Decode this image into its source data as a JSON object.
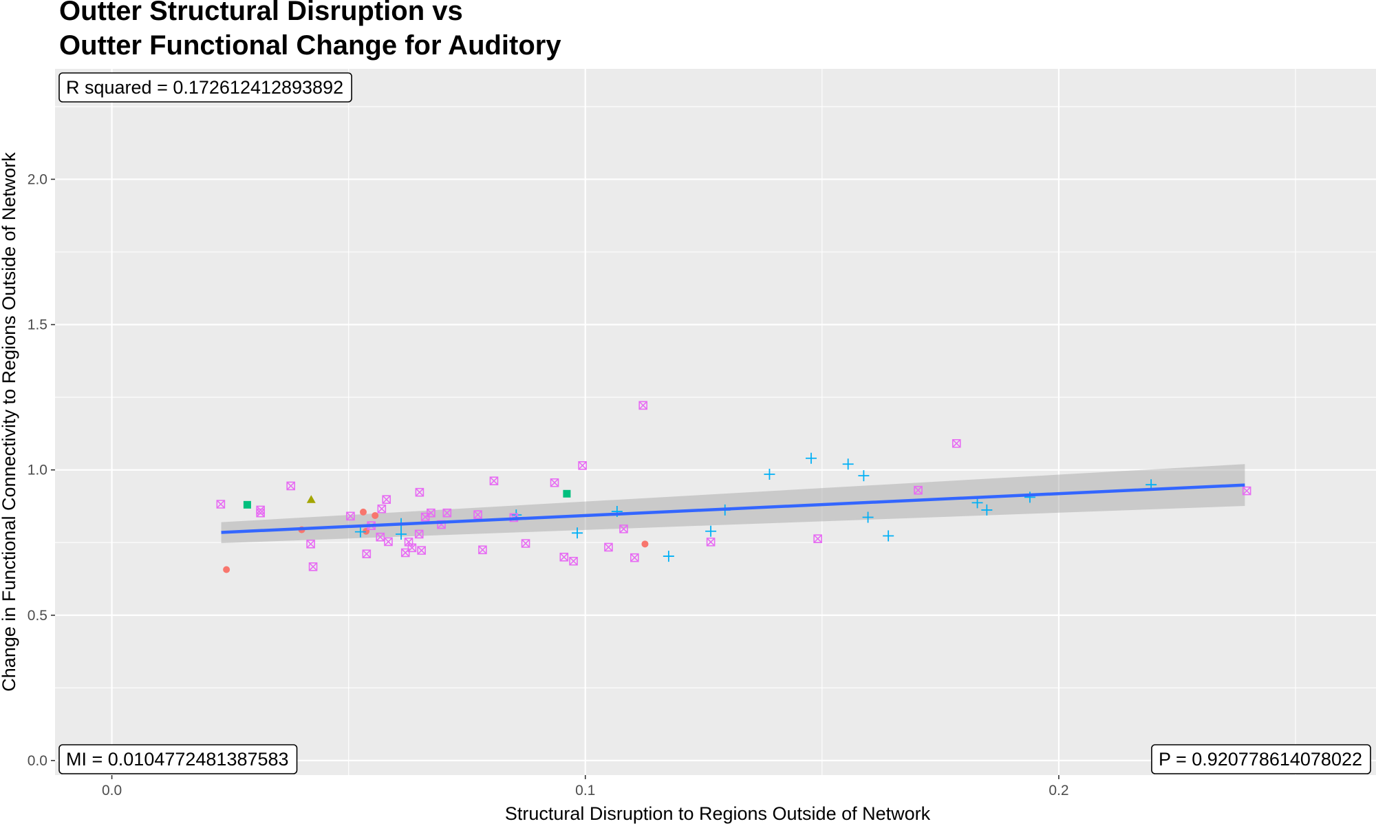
{
  "chart_data": {
    "type": "scatter",
    "title_lines": [
      "Outter Structural Disruption vs",
      "Outter Functional Change for Auditory"
    ],
    "xlabel": "Structural Disruption to Regions Outside of Network",
    "ylabel": "Change in Functional Connectivity to Regions Outside of Network",
    "xlim": [
      -0.012,
      0.267
    ],
    "ylim": [
      -0.05,
      2.38
    ],
    "x_ticks": [
      0.0,
      0.1,
      0.2
    ],
    "x_tick_labels": [
      "0.0",
      "0.1",
      "0.2"
    ],
    "y_ticks": [
      0.0,
      0.5,
      1.0,
      1.5,
      2.0
    ],
    "y_tick_labels": [
      "0.0",
      "0.5",
      "1.0",
      "1.5",
      "2.0"
    ],
    "grid": true,
    "legend": "none",
    "panel_background": "#ebebeb",
    "annotations": {
      "r_squared": "R squared =  0.172612412893892",
      "mi": "MI =  0.0104772481387583",
      "p": "P =  0.920778614078022"
    },
    "regression": {
      "x": [
        0.0231,
        0.2393
      ],
      "y": [
        0.785,
        0.948
      ],
      "ci_upper": [
        0.82,
        1.02
      ],
      "ci_lower": [
        0.748,
        0.876
      ],
      "line_color": "#3366ff",
      "band_color": "#999999"
    },
    "series": [
      {
        "marker": "circle",
        "color": "#f8766d",
        "points": [
          [
            0.0242,
            0.657
          ],
          [
            0.0401,
            0.794
          ],
          [
            0.0531,
            0.855
          ],
          [
            0.0537,
            0.789
          ],
          [
            0.0556,
            0.843
          ],
          [
            0.1126,
            0.745
          ]
        ]
      },
      {
        "marker": "triangle",
        "color": "#a3a500",
        "points": [
          [
            0.0421,
            0.898
          ]
        ]
      },
      {
        "marker": "square",
        "color": "#00bf7d",
        "points": [
          [
            0.0286,
            0.88
          ],
          [
            0.0961,
            0.918
          ]
        ]
      },
      {
        "marker": "plus",
        "color": "#00b0f6",
        "points": [
          [
            0.0525,
            0.787
          ],
          [
            0.0611,
            0.815
          ],
          [
            0.0611,
            0.779
          ],
          [
            0.0854,
            0.845
          ],
          [
            0.0983,
            0.783
          ],
          [
            0.1067,
            0.857
          ],
          [
            0.1176,
            0.703
          ],
          [
            0.1265,
            0.789
          ],
          [
            0.1295,
            0.862
          ],
          [
            0.1389,
            0.985
          ],
          [
            0.1477,
            1.04
          ],
          [
            0.1555,
            1.02
          ],
          [
            0.1588,
            0.98
          ],
          [
            0.1597,
            0.837
          ],
          [
            0.164,
            0.773
          ],
          [
            0.1828,
            0.887
          ],
          [
            0.1848,
            0.862
          ],
          [
            0.1939,
            0.906
          ],
          [
            0.2195,
            0.949
          ]
        ]
      },
      {
        "marker": "boxcross",
        "color": "#e76bf3",
        "points": [
          [
            0.023,
            0.882
          ],
          [
            0.0314,
            0.862
          ],
          [
            0.0314,
            0.852
          ],
          [
            0.0378,
            0.945
          ],
          [
            0.042,
            0.745
          ],
          [
            0.0425,
            0.667
          ],
          [
            0.0504,
            0.841
          ],
          [
            0.0538,
            0.711
          ],
          [
            0.0548,
            0.808
          ],
          [
            0.0567,
            0.769
          ],
          [
            0.057,
            0.866
          ],
          [
            0.058,
            0.898
          ],
          [
            0.0584,
            0.753
          ],
          [
            0.062,
            0.715
          ],
          [
            0.0627,
            0.752
          ],
          [
            0.0634,
            0.732
          ],
          [
            0.0649,
            0.779
          ],
          [
            0.065,
            0.923
          ],
          [
            0.0654,
            0.723
          ],
          [
            0.0662,
            0.838
          ],
          [
            0.0674,
            0.852
          ],
          [
            0.0696,
            0.812
          ],
          [
            0.0708,
            0.852
          ],
          [
            0.0773,
            0.846
          ],
          [
            0.0783,
            0.725
          ],
          [
            0.0807,
            0.962
          ],
          [
            0.0849,
            0.836
          ],
          [
            0.0874,
            0.747
          ],
          [
            0.0935,
            0.956
          ],
          [
            0.0955,
            0.7
          ],
          [
            0.0975,
            0.686
          ],
          [
            0.0994,
            1.015
          ],
          [
            0.1049,
            0.734
          ],
          [
            0.1081,
            0.797
          ],
          [
            0.1104,
            0.698
          ],
          [
            0.1122,
            1.222
          ],
          [
            0.1265,
            0.752
          ],
          [
            0.1491,
            0.763
          ],
          [
            0.1703,
            0.93
          ],
          [
            0.1784,
            1.091
          ],
          [
            0.2397,
            0.928
          ]
        ]
      }
    ]
  }
}
